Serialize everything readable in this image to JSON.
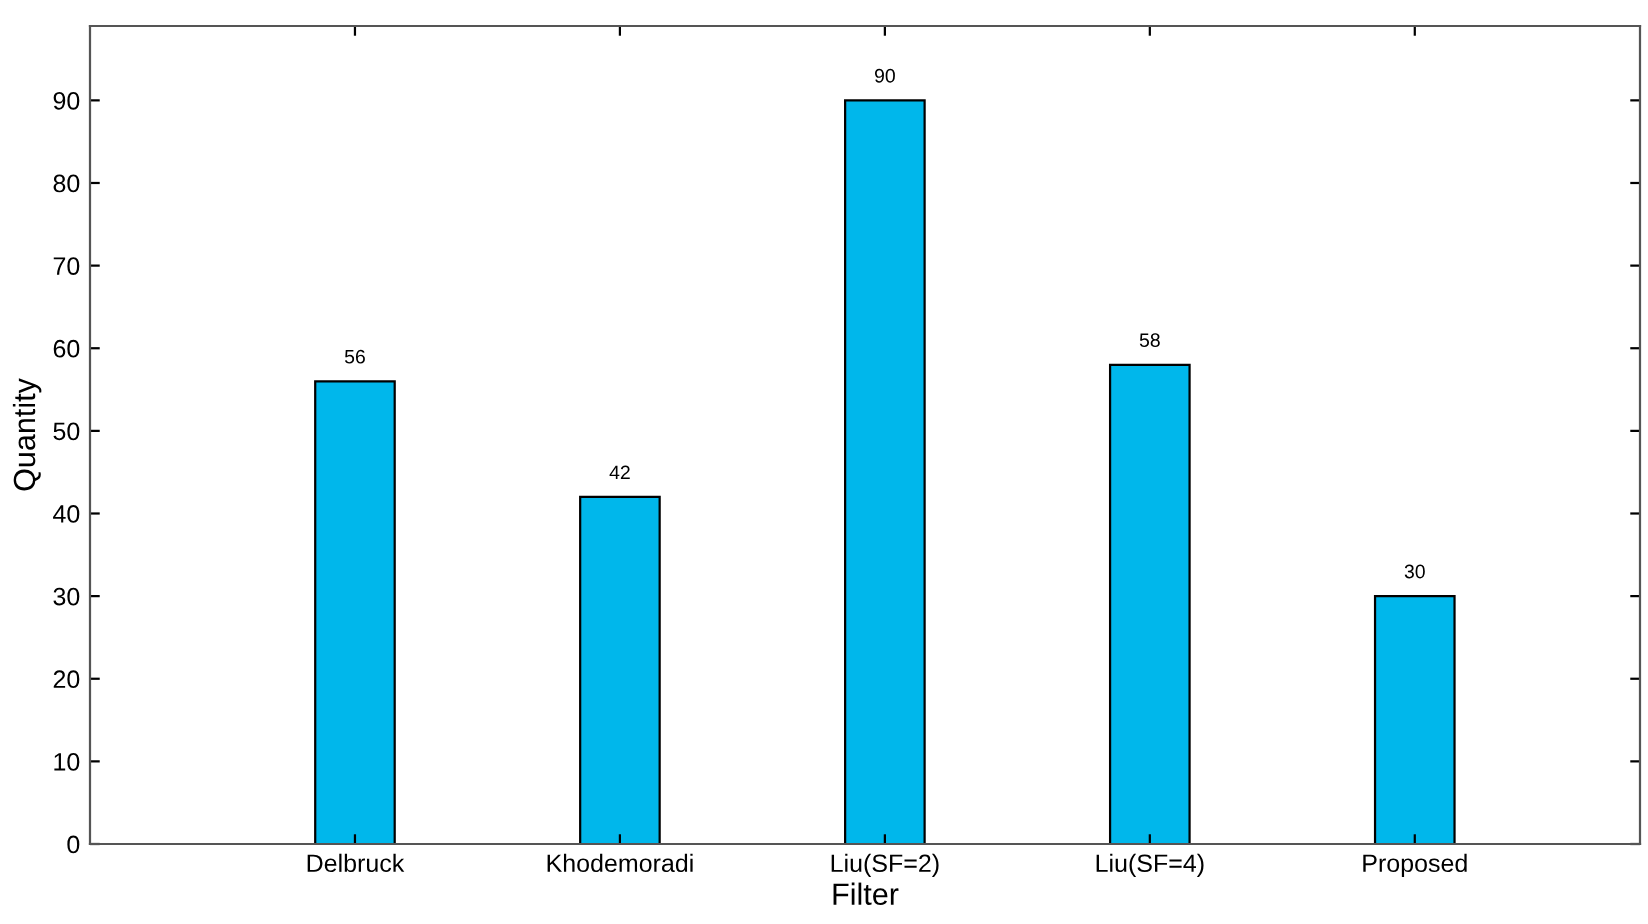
{
  "chart_data": {
    "type": "bar",
    "xlabel": "Filter",
    "ylabel": "Quantity",
    "categories": [
      "Delbruck",
      "Khodemoradi",
      "Liu(SF=2)",
      "Liu(SF=4)",
      "Proposed"
    ],
    "values": [
      56,
      42,
      90,
      58,
      30
    ],
    "color": "#00b7eb",
    "ylim": [
      0,
      99
    ],
    "yticks": [
      0,
      10,
      20,
      30,
      40,
      50,
      60,
      70,
      80,
      90
    ],
    "data_labels": true,
    "grid": false
  }
}
